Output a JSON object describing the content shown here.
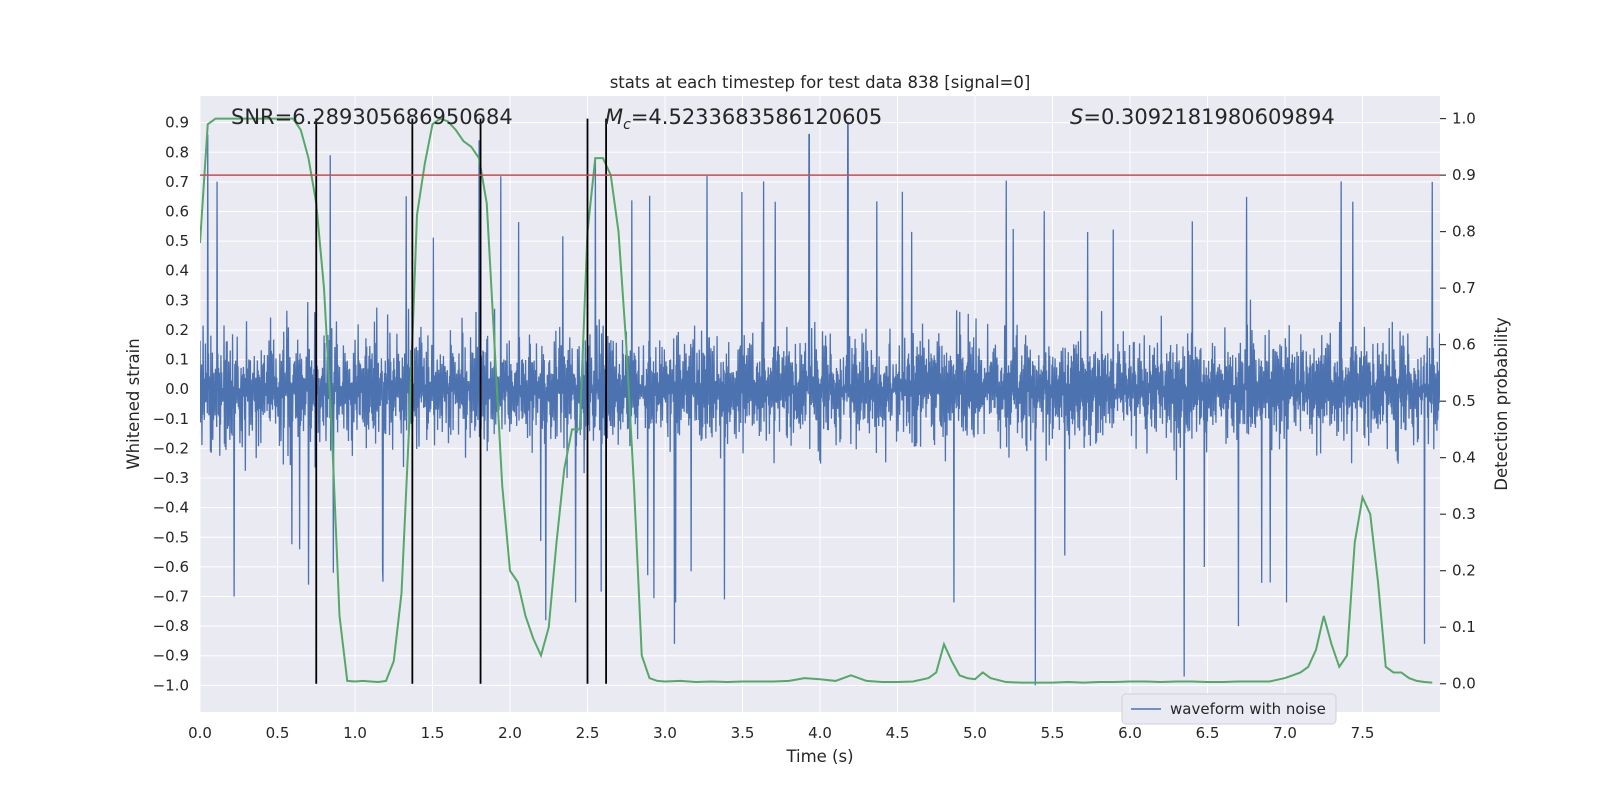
{
  "chart_data": {
    "type": "line",
    "title": "stats at each timestep for test data 838 [signal=0]",
    "xlabel": "Time (s)",
    "ylabel": "Whitened strain",
    "y2label": "Detection probability",
    "xlim": [
      0.0,
      8.0
    ],
    "ylim": [
      -1.09,
      0.99
    ],
    "y2lim": [
      -0.05,
      1.04
    ],
    "x_ticks": [
      0.0,
      0.5,
      1.0,
      1.5,
      2.0,
      2.5,
      3.0,
      3.5,
      4.0,
      4.5,
      5.0,
      5.5,
      6.0,
      6.5,
      7.0,
      7.5
    ],
    "x_tick_labels": [
      "0.0",
      "0.5",
      "1.0",
      "1.5",
      "2.0",
      "2.5",
      "3.0",
      "3.5",
      "4.0",
      "4.5",
      "5.0",
      "5.5",
      "6.0",
      "6.5",
      "7.0",
      "7.5"
    ],
    "y_ticks": [
      -1.0,
      -0.9,
      -0.8,
      -0.7,
      -0.6,
      -0.5,
      -0.4,
      -0.3,
      -0.2,
      -0.1,
      0.0,
      0.1,
      0.2,
      0.3,
      0.4,
      0.5,
      0.6,
      0.7,
      0.8,
      0.9
    ],
    "y_tick_labels": [
      "−1.0",
      "−0.9",
      "−0.8",
      "−0.7",
      "−0.6",
      "−0.5",
      "−0.4",
      "−0.3",
      "−0.2",
      "−0.1",
      "0.0",
      "0.1",
      "0.2",
      "0.3",
      "0.4",
      "0.5",
      "0.6",
      "0.7",
      "0.8",
      "0.9"
    ],
    "y2_ticks": [
      0.0,
      0.1,
      0.2,
      0.3,
      0.4,
      0.5,
      0.6,
      0.7,
      0.8,
      0.9,
      1.0
    ],
    "y2_tick_labels": [
      "0.0",
      "0.1",
      "0.2",
      "0.3",
      "0.4",
      "0.5",
      "0.6",
      "0.7",
      "0.8",
      "0.9",
      "1.0"
    ],
    "grid": true,
    "legend": {
      "entries": [
        "waveform with noise"
      ],
      "location": "lower-right"
    },
    "threshold_line": {
      "axis": "y2",
      "value": 0.9,
      "color": "#c44e52"
    },
    "vertical_lines": {
      "x": [
        0.75,
        1.37,
        1.81,
        2.5,
        2.62
      ],
      "y_from": -1.0,
      "y_to": 1.0,
      "y2_from": 0.0,
      "y2_to": 1.0,
      "color": "#000000"
    },
    "annotations": [
      {
        "text": "SNR=6.289305686950684",
        "anchor": "left"
      },
      {
        "text": "M_c=4.5233683586120605",
        "prefix": "M",
        "subscript": "c",
        "suffix": "=4.5233683586120605",
        "anchor": "middle"
      },
      {
        "text": "S=0.3092181980609894",
        "prefix": "S",
        "suffix": "=0.3092181980609894",
        "anchor": "right"
      }
    ],
    "series": [
      {
        "name": "waveform with noise",
        "axis": "y",
        "color": "#4c72b0",
        "kind": "noise",
        "description": "dense whitened strain samples, mostly within about ±0.45 with spikes up to 0.9 and down to -1.0",
        "spikes": [
          {
            "x": 0.05,
            "y": 0.86
          },
          {
            "x": 0.22,
            "y": -0.7
          },
          {
            "x": 0.7,
            "y": -0.66
          },
          {
            "x": 0.84,
            "y": 0.79
          },
          {
            "x": 0.86,
            "y": -0.62
          },
          {
            "x": 1.18,
            "y": -0.65
          },
          {
            "x": 1.8,
            "y": 0.84
          },
          {
            "x": 2.23,
            "y": -0.78
          },
          {
            "x": 2.55,
            "y": 0.78
          },
          {
            "x": 3.06,
            "y": -0.86
          },
          {
            "x": 3.93,
            "y": 0.86
          },
          {
            "x": 4.18,
            "y": 0.9
          },
          {
            "x": 5.39,
            "y": -1.0
          },
          {
            "x": 6.35,
            "y": -0.97
          },
          {
            "x": 6.7,
            "y": -0.8
          },
          {
            "x": 7.9,
            "y": -0.86
          },
          {
            "x": 7.95,
            "y": 0.7
          }
        ]
      },
      {
        "name": "detection probability",
        "axis": "y2",
        "color": "#55a868",
        "x": [
          0.0,
          0.05,
          0.1,
          0.2,
          0.3,
          0.4,
          0.5,
          0.6,
          0.65,
          0.7,
          0.75,
          0.8,
          0.85,
          0.9,
          0.95,
          1.0,
          1.05,
          1.1,
          1.15,
          1.2,
          1.25,
          1.3,
          1.35,
          1.4,
          1.45,
          1.5,
          1.55,
          1.6,
          1.65,
          1.7,
          1.75,
          1.8,
          1.85,
          1.9,
          1.95,
          2.0,
          2.05,
          2.1,
          2.15,
          2.2,
          2.25,
          2.3,
          2.35,
          2.4,
          2.45,
          2.5,
          2.55,
          2.6,
          2.65,
          2.7,
          2.75,
          2.8,
          2.85,
          2.9,
          2.95,
          3.0,
          3.1,
          3.2,
          3.3,
          3.4,
          3.5,
          3.6,
          3.7,
          3.8,
          3.9,
          4.0,
          4.1,
          4.2,
          4.3,
          4.4,
          4.5,
          4.6,
          4.7,
          4.75,
          4.8,
          4.85,
          4.9,
          4.95,
          5.0,
          5.05,
          5.1,
          5.2,
          5.3,
          5.4,
          5.5,
          5.6,
          5.7,
          5.8,
          5.9,
          6.0,
          6.1,
          6.2,
          6.3,
          6.4,
          6.5,
          6.6,
          6.7,
          6.8,
          6.9,
          7.0,
          7.05,
          7.1,
          7.15,
          7.2,
          7.25,
          7.3,
          7.35,
          7.4,
          7.45,
          7.5,
          7.55,
          7.6,
          7.65,
          7.7,
          7.75,
          7.8,
          7.85,
          7.9,
          7.95
        ],
        "values": [
          0.78,
          0.99,
          1.0,
          1.0,
          1.0,
          1.0,
          1.0,
          1.0,
          0.98,
          0.93,
          0.85,
          0.7,
          0.45,
          0.12,
          0.005,
          0.004,
          0.005,
          0.004,
          0.003,
          0.005,
          0.04,
          0.16,
          0.46,
          0.83,
          0.92,
          0.99,
          1.0,
          0.995,
          0.98,
          0.96,
          0.95,
          0.93,
          0.85,
          0.6,
          0.35,
          0.2,
          0.18,
          0.12,
          0.08,
          0.05,
          0.1,
          0.25,
          0.38,
          0.45,
          0.45,
          0.8,
          0.93,
          0.93,
          0.9,
          0.8,
          0.6,
          0.35,
          0.05,
          0.01,
          0.005,
          0.004,
          0.005,
          0.003,
          0.004,
          0.003,
          0.004,
          0.004,
          0.004,
          0.005,
          0.01,
          0.008,
          0.005,
          0.015,
          0.005,
          0.003,
          0.003,
          0.004,
          0.01,
          0.02,
          0.07,
          0.04,
          0.015,
          0.01,
          0.008,
          0.02,
          0.01,
          0.003,
          0.002,
          0.002,
          0.002,
          0.003,
          0.002,
          0.003,
          0.003,
          0.004,
          0.004,
          0.003,
          0.004,
          0.004,
          0.003,
          0.003,
          0.004,
          0.004,
          0.004,
          0.01,
          0.015,
          0.02,
          0.03,
          0.06,
          0.12,
          0.07,
          0.03,
          0.05,
          0.25,
          0.33,
          0.3,
          0.18,
          0.03,
          0.02,
          0.02,
          0.01,
          0.005,
          0.003,
          0.002
        ]
      }
    ]
  }
}
